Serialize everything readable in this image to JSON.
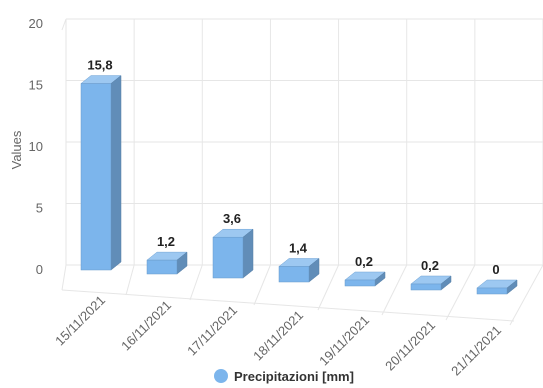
{
  "chart_data": {
    "type": "bar",
    "categories": [
      "15/11/2021",
      "16/11/2021",
      "17/11/2021",
      "18/11/2021",
      "19/11/2021",
      "20/11/2021",
      "21/11/2021"
    ],
    "series": [
      {
        "name": "Precipitazioni [mm]",
        "values": [
          15.8,
          1.2,
          3.6,
          1.4,
          0.2,
          0.2,
          0
        ],
        "value_labels": [
          "15,8",
          "1,2",
          "3,6",
          "1,4",
          "0,2",
          "0,2",
          "0"
        ],
        "color": "#7cb5ec"
      }
    ],
    "ylabel": "Values",
    "yticks": [
      0,
      5,
      10,
      15,
      20
    ],
    "ylim": [
      0,
      20
    ],
    "grid": true,
    "legend": "bottom-center",
    "style": "3d-column"
  }
}
